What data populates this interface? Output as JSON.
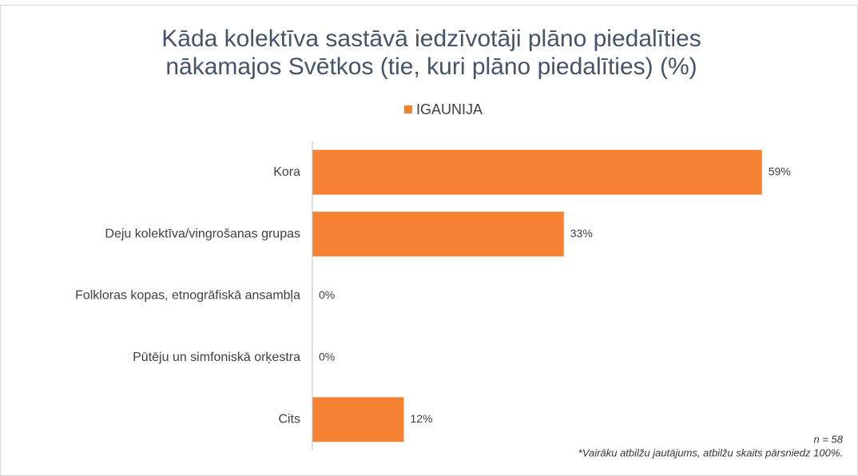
{
  "chart_data": {
    "type": "barh",
    "title": [
      "Kāda kolektīva sastāvā iedzīvotāji plāno piedalīties",
      "nākamajos Svētkos (tie, kuri plāno piedalīties) (%)"
    ],
    "categories": [
      "Kora",
      "Deju kolektīva/vingrošanas grupas",
      "Folkloras kopas, etnogrāfiskā ansambļa",
      "Pūtēju un simfoniskā orķestra",
      "Cits"
    ],
    "series": [
      {
        "name": "IGAUNIJA",
        "color": "#f58233",
        "values": [
          59,
          33,
          0,
          0,
          12
        ],
        "value_labels": [
          "59%",
          "33%",
          "0%",
          "0%",
          "12%"
        ]
      }
    ],
    "xlim": [
      0,
      65
    ],
    "legend": "top",
    "notes": [
      "n = 58",
      "*Vairāku atbilžu jautājums, atbilžu skaits pārsniedz 100%."
    ]
  }
}
